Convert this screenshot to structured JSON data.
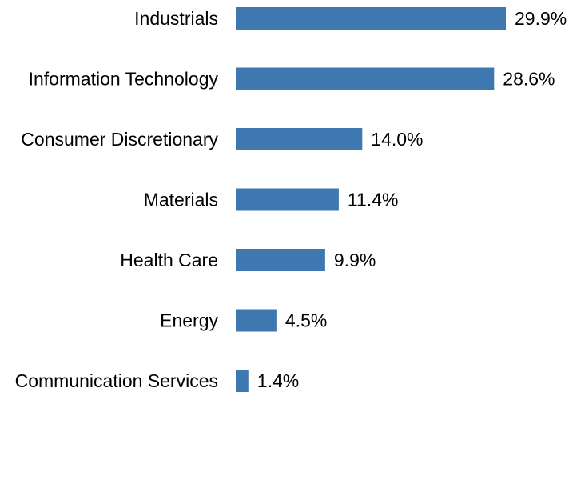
{
  "chart_data": {
    "type": "bar",
    "orientation": "horizontal",
    "categories": [
      "Industrials",
      "Information Technology",
      "Consumer Discretionary",
      "Materials",
      "Health Care",
      "Energy",
      "Communication Services"
    ],
    "values": [
      29.9,
      28.6,
      14.0,
      11.4,
      9.9,
      4.5,
      1.4
    ],
    "value_labels": [
      "29.9%",
      "28.6%",
      "14.0%",
      "11.4%",
      "9.9%",
      "4.5%",
      "1.4%"
    ],
    "unit": "%",
    "title": "",
    "xlabel": "",
    "ylabel": "",
    "xlim": [
      0,
      29.9
    ],
    "grid": false,
    "legend": "none",
    "bar_color": "#3f78b0"
  }
}
